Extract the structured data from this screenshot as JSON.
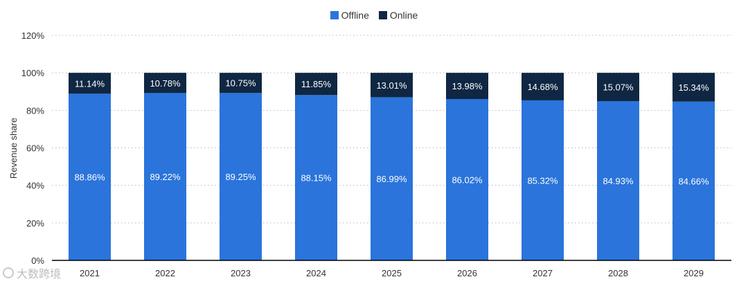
{
  "legend": {
    "offline_label": "Offline",
    "online_label": "Online"
  },
  "colors": {
    "offline": "#2a74db",
    "online": "#0f2742",
    "grid": "#b9b9b9",
    "axis_text": "#333333"
  },
  "watermark": {
    "text": "大数跨境"
  },
  "chart_data": {
    "type": "bar",
    "stacked": true,
    "categories": [
      "2021",
      "2022",
      "2023",
      "2024",
      "2025",
      "2026",
      "2027",
      "2028",
      "2029"
    ],
    "series": [
      {
        "name": "Offline",
        "values": [
          88.86,
          89.22,
          89.25,
          88.15,
          86.99,
          86.02,
          85.32,
          84.93,
          84.66
        ],
        "labels": [
          "88.86%",
          "89.22%",
          "89.25%",
          "88.15%",
          "86.99%",
          "86.02%",
          "85.32%",
          "84.93%",
          "84.66%"
        ]
      },
      {
        "name": "Online",
        "values": [
          11.14,
          10.78,
          10.75,
          11.85,
          13.01,
          13.98,
          14.68,
          15.07,
          15.34
        ],
        "labels": [
          "11.14%",
          "10.78%",
          "10.75%",
          "11.85%",
          "13.01%",
          "13.98%",
          "14.68%",
          "15.07%",
          "15.34%"
        ]
      }
    ],
    "ylabel": "Revenue share",
    "ylim": [
      0,
      120
    ],
    "yticks": [
      0,
      20,
      40,
      60,
      80,
      100,
      120
    ],
    "ytick_labels": [
      "0%",
      "20%",
      "40%",
      "60%",
      "80%",
      "100%",
      "120%"
    ],
    "grid": true,
    "legend_position": "top-center"
  }
}
